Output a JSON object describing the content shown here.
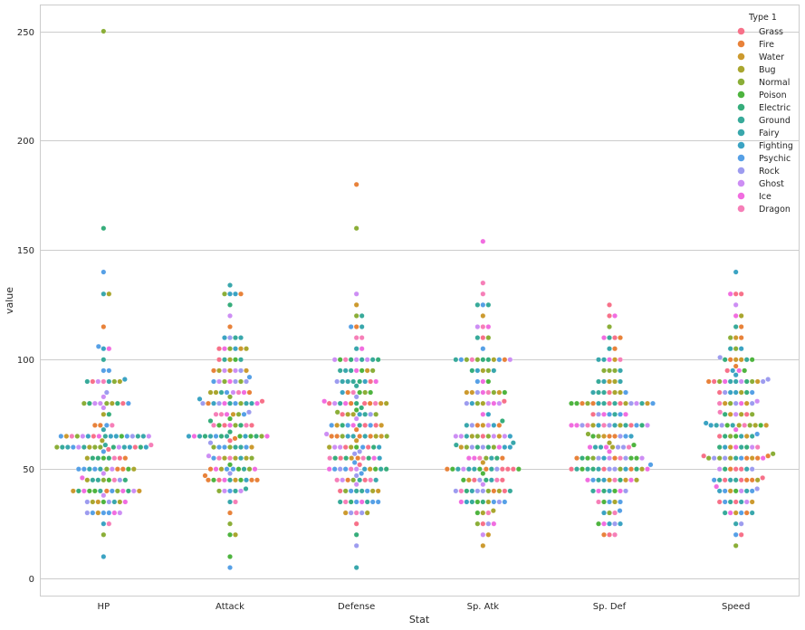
{
  "chart_data": {
    "type": "scatter",
    "subtype": "swarm",
    "xlabel": "Stat",
    "ylabel": "value",
    "categories": [
      "HP",
      "Attack",
      "Defense",
      "Sp. Atk",
      "Sp. Def",
      "Speed"
    ],
    "ylim": [
      -8,
      262
    ],
    "yticks": [
      0,
      50,
      100,
      150,
      200,
      250
    ],
    "grid": true,
    "legend": {
      "title": "Type 1",
      "placement": "top-right",
      "entries": [
        {
          "name": "Grass",
          "color": "#f77189"
        },
        {
          "name": "Fire",
          "color": "#e8823a"
        },
        {
          "name": "Water",
          "color": "#cc9a2f"
        },
        {
          "name": "Bug",
          "color": "#a9a62f"
        },
        {
          "name": "Normal",
          "color": "#8bae38"
        },
        {
          "name": "Poison",
          "color": "#4eb43f"
        },
        {
          "name": "Electric",
          "color": "#36ad7b"
        },
        {
          "name": "Ground",
          "color": "#38aa9a"
        },
        {
          "name": "Fairy",
          "color": "#39a7ac"
        },
        {
          "name": "Fighting",
          "color": "#3ba3c3"
        },
        {
          "name": "Psychic",
          "color": "#56a0e6"
        },
        {
          "name": "Rock",
          "color": "#9d9cef"
        },
        {
          "name": "Ghost",
          "color": "#cd8ef4"
        },
        {
          "name": "Ice",
          "color": "#f16de0"
        },
        {
          "name": "Dragon",
          "color": "#f67fb8"
        }
      ]
    },
    "series": [
      {
        "name": "HP",
        "values": [
          250,
          160,
          140,
          130,
          130,
          115,
          106,
          105,
          105,
          100,
          95,
          95,
          91,
          90,
          90,
          90,
          90,
          90,
          90,
          90,
          85,
          83,
          80,
          80,
          80,
          80,
          80,
          80,
          80,
          80,
          80,
          78,
          75,
          75,
          70,
          70,
          70,
          70,
          68,
          65,
          65,
          65,
          65,
          65,
          65,
          65,
          65,
          65,
          65,
          65,
          65,
          65,
          65,
          65,
          65,
          65,
          63,
          61,
          61,
          60,
          60,
          60,
          60,
          60,
          60,
          60,
          60,
          60,
          60,
          60,
          60,
          60,
          60,
          60,
          60,
          59,
          58,
          55,
          55,
          55,
          55,
          55,
          55,
          55,
          55,
          50,
          50,
          50,
          50,
          50,
          50,
          50,
          50,
          50,
          50,
          50,
          48,
          46,
          45,
          45,
          45,
          45,
          45,
          45,
          45,
          45,
          40,
          40,
          40,
          40,
          40,
          40,
          40,
          40,
          40,
          40,
          40,
          40,
          40,
          38,
          35,
          35,
          35,
          35,
          35,
          35,
          35,
          35,
          30,
          30,
          30,
          30,
          30,
          30,
          30,
          25,
          25,
          20,
          10
        ]
      },
      {
        "name": "Attack",
        "values": [
          134,
          130,
          130,
          130,
          130,
          125,
          120,
          115,
          110,
          110,
          110,
          110,
          105,
          105,
          105,
          105,
          105,
          105,
          100,
          100,
          100,
          100,
          100,
          95,
          95,
          95,
          95,
          95,
          95,
          95,
          92,
          90,
          90,
          90,
          90,
          90,
          90,
          90,
          85,
          85,
          85,
          85,
          85,
          85,
          85,
          85,
          83,
          82,
          81,
          80,
          80,
          80,
          80,
          80,
          80,
          80,
          80,
          80,
          80,
          80,
          76,
          75,
          75,
          75,
          75,
          75,
          75,
          73,
          72,
          70,
          70,
          70,
          70,
          70,
          70,
          70,
          70,
          67,
          65,
          65,
          65,
          65,
          65,
          65,
          65,
          65,
          65,
          65,
          65,
          65,
          65,
          65,
          64,
          63,
          62,
          60,
          60,
          60,
          60,
          60,
          60,
          60,
          60,
          56,
          55,
          55,
          55,
          55,
          55,
          55,
          55,
          55,
          52,
          50,
          50,
          50,
          50,
          50,
          50,
          50,
          50,
          50,
          48,
          47,
          45,
          45,
          45,
          45,
          45,
          45,
          45,
          45,
          45,
          45,
          41,
          40,
          40,
          40,
          40,
          40,
          35,
          35,
          30,
          25,
          20,
          20,
          10,
          5
        ]
      },
      {
        "name": "Defense",
        "values": [
          180,
          160,
          130,
          125,
          120,
          120,
          115,
          115,
          115,
          110,
          110,
          105,
          105,
          100,
          100,
          100,
          100,
          100,
          100,
          100,
          100,
          100,
          95,
          95,
          95,
          95,
          95,
          95,
          95,
          90,
          90,
          90,
          90,
          90,
          90,
          90,
          90,
          88,
          85,
          85,
          85,
          85,
          85,
          85,
          83,
          81,
          80,
          80,
          80,
          80,
          80,
          80,
          80,
          80,
          80,
          80,
          80,
          78,
          77,
          76,
          75,
          75,
          75,
          75,
          75,
          75,
          75,
          73,
          70,
          70,
          70,
          70,
          70,
          70,
          70,
          70,
          70,
          70,
          68,
          66,
          65,
          65,
          65,
          65,
          65,
          65,
          65,
          65,
          65,
          65,
          65,
          63,
          60,
          60,
          60,
          60,
          60,
          60,
          60,
          60,
          60,
          60,
          58,
          57,
          55,
          55,
          55,
          55,
          55,
          55,
          55,
          55,
          55,
          55,
          53,
          52,
          50,
          50,
          50,
          50,
          50,
          50,
          50,
          50,
          50,
          50,
          50,
          48,
          47,
          45,
          45,
          45,
          45,
          45,
          45,
          45,
          45,
          43,
          40,
          40,
          40,
          40,
          40,
          40,
          40,
          40,
          35,
          35,
          35,
          35,
          35,
          35,
          35,
          35,
          30,
          30,
          30,
          30,
          30,
          25,
          20,
          15,
          5
        ]
      },
      {
        "name": "Sp. Atk",
        "values": [
          154,
          135,
          130,
          125,
          125,
          125,
          120,
          115,
          115,
          115,
          110,
          110,
          110,
          105,
          100,
          100,
          100,
          100,
          100,
          100,
          100,
          100,
          100,
          100,
          100,
          95,
          95,
          95,
          95,
          95,
          90,
          90,
          90,
          85,
          85,
          85,
          85,
          85,
          85,
          85,
          85,
          81,
          80,
          80,
          80,
          80,
          80,
          80,
          80,
          75,
          75,
          72,
          70,
          70,
          70,
          70,
          70,
          70,
          70,
          65,
          65,
          65,
          65,
          65,
          65,
          65,
          65,
          65,
          65,
          65,
          62,
          61,
          60,
          60,
          60,
          60,
          60,
          60,
          60,
          60,
          60,
          60,
          55,
          55,
          55,
          55,
          55,
          55,
          55,
          53,
          50,
          50,
          50,
          50,
          50,
          50,
          50,
          50,
          50,
          50,
          50,
          50,
          50,
          50,
          48,
          45,
          45,
          45,
          45,
          45,
          45,
          45,
          45,
          43,
          40,
          40,
          40,
          40,
          40,
          40,
          40,
          40,
          40,
          40,
          40,
          35,
          35,
          35,
          35,
          35,
          35,
          35,
          35,
          35,
          31,
          30,
          30,
          30,
          25,
          25,
          25,
          25,
          20,
          20,
          15
        ]
      },
      {
        "name": "Sp. Def",
        "values": [
          125,
          120,
          120,
          115,
          110,
          110,
          110,
          110,
          105,
          105,
          100,
          100,
          100,
          100,
          100,
          95,
          95,
          95,
          95,
          90,
          90,
          90,
          90,
          90,
          85,
          85,
          85,
          85,
          85,
          85,
          85,
          80,
          80,
          80,
          80,
          80,
          80,
          80,
          80,
          80,
          80,
          80,
          80,
          80,
          80,
          80,
          80,
          75,
          75,
          75,
          75,
          75,
          75,
          75,
          70,
          70,
          70,
          70,
          70,
          70,
          70,
          70,
          70,
          70,
          70,
          70,
          70,
          70,
          70,
          66,
          65,
          65,
          65,
          65,
          65,
          65,
          65,
          65,
          62,
          61,
          60,
          60,
          60,
          60,
          60,
          60,
          60,
          60,
          58,
          55,
          55,
          55,
          55,
          55,
          55,
          55,
          55,
          55,
          55,
          55,
          55,
          55,
          52,
          50,
          50,
          50,
          50,
          50,
          50,
          50,
          50,
          50,
          50,
          50,
          50,
          50,
          50,
          50,
          45,
          45,
          45,
          45,
          45,
          45,
          45,
          45,
          45,
          45,
          40,
          40,
          40,
          40,
          40,
          40,
          40,
          35,
          35,
          35,
          35,
          35,
          31,
          30,
          30,
          30,
          25,
          25,
          25,
          25,
          25,
          20,
          20,
          20
        ]
      },
      {
        "name": "Speed",
        "values": [
          140,
          130,
          130,
          130,
          125,
          120,
          120,
          115,
          115,
          110,
          110,
          110,
          105,
          105,
          105,
          101,
          100,
          100,
          100,
          100,
          100,
          100,
          97,
          95,
          95,
          95,
          95,
          93,
          91,
          90,
          90,
          90,
          90,
          90,
          90,
          90,
          90,
          90,
          90,
          90,
          85,
          85,
          85,
          85,
          85,
          85,
          85,
          81,
          80,
          80,
          80,
          80,
          80,
          80,
          80,
          76,
          75,
          75,
          75,
          75,
          75,
          75,
          71,
          70,
          70,
          70,
          70,
          70,
          70,
          70,
          70,
          70,
          70,
          70,
          68,
          66,
          65,
          65,
          65,
          65,
          65,
          65,
          65,
          60,
          60,
          60,
          60,
          60,
          60,
          60,
          60,
          57,
          56,
          56,
          55,
          55,
          55,
          55,
          55,
          55,
          55,
          55,
          55,
          55,
          55,
          50,
          50,
          50,
          50,
          50,
          50,
          50,
          46,
          45,
          45,
          45,
          45,
          45,
          45,
          45,
          45,
          45,
          42,
          41,
          40,
          40,
          40,
          40,
          40,
          40,
          40,
          35,
          35,
          35,
          35,
          35,
          35,
          35,
          30,
          30,
          30,
          30,
          30,
          30,
          25,
          25,
          20,
          20,
          15
        ]
      }
    ]
  }
}
